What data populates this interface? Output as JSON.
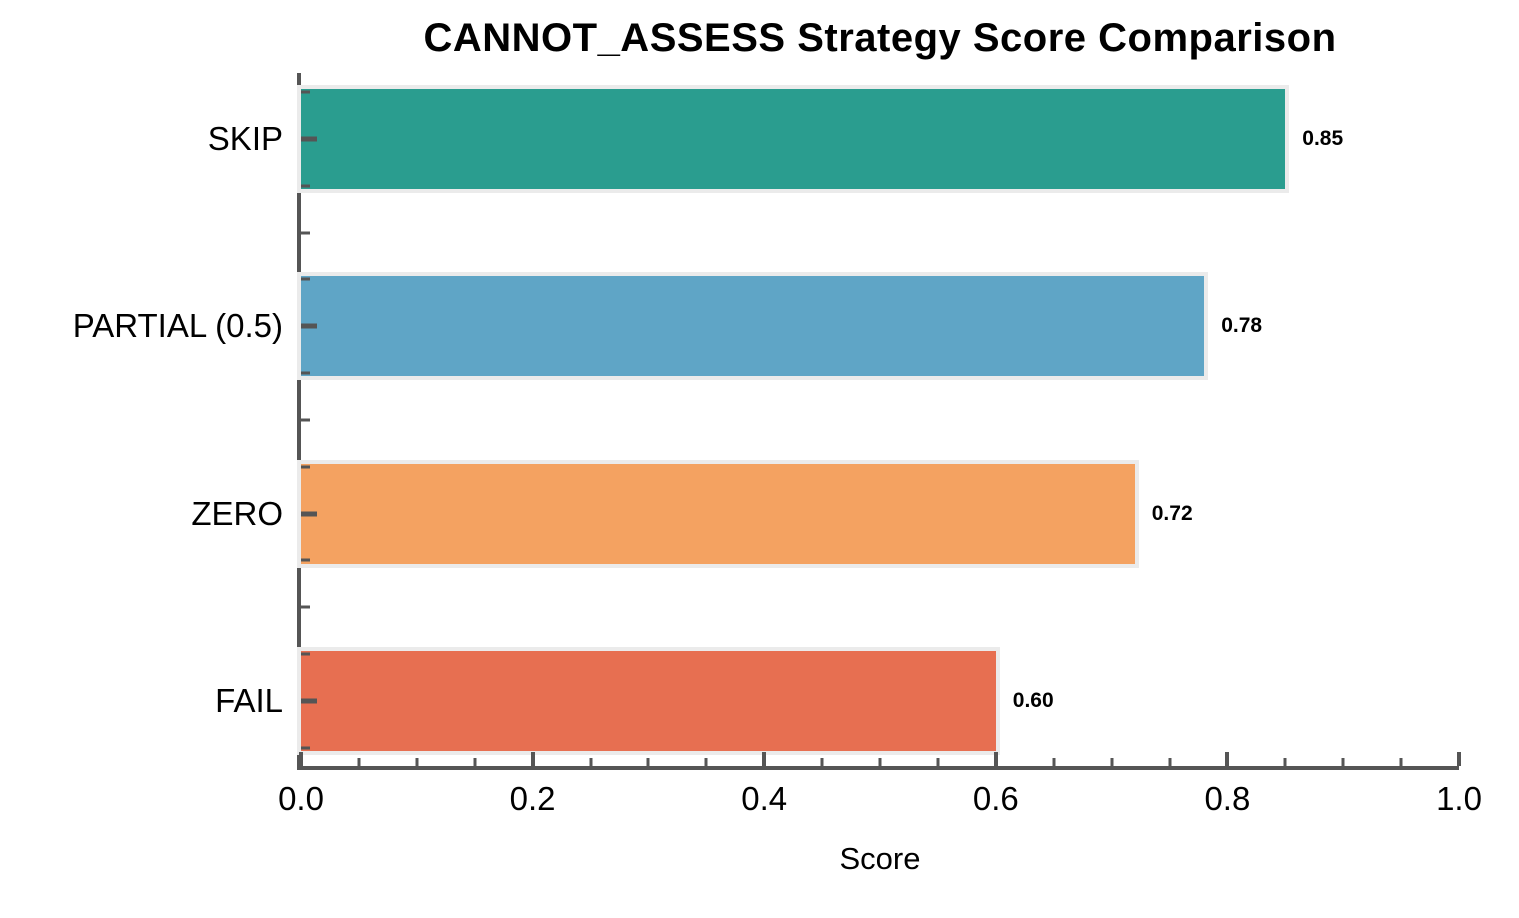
{
  "chart_data": {
    "type": "bar",
    "orientation": "horizontal",
    "title": "CANNOT_ASSESS Strategy Score Comparison",
    "xlabel": "Score",
    "ylabel": "",
    "categories": [
      "SKIP",
      "PARTIAL (0.5)",
      "ZERO",
      "FAIL"
    ],
    "values": [
      0.85,
      0.78,
      0.72,
      0.6
    ],
    "value_labels": [
      "0.85",
      "0.78",
      "0.72",
      "0.60"
    ],
    "bar_colors": [
      "#2a9d8f",
      "#5fa5c6",
      "#f4a261",
      "#e76f51"
    ],
    "bar_edge_color": "#ebebeb",
    "xlim": [
      0.0,
      1.0
    ],
    "x_tick_labels": [
      "0.0",
      "0.2",
      "0.4",
      "0.6",
      "0.8",
      "1.0"
    ],
    "x_major_tick_interval": 0.2,
    "x_minor_tick_interval": 0.05,
    "y_minor_ticks_per_category": 4,
    "tick_direction": "in",
    "grid": false,
    "legend": false,
    "axis_color": "#555555",
    "text_color": "#000000",
    "background_color": "#ffffff"
  }
}
